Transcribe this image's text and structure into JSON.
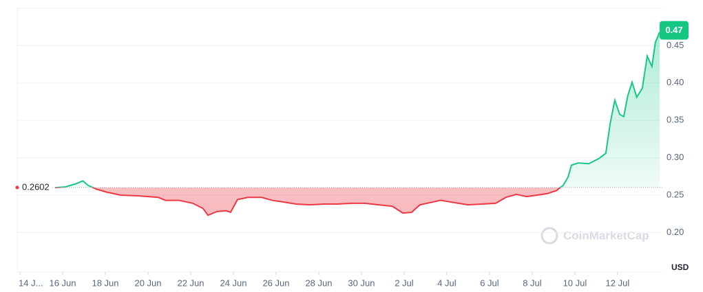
{
  "chart_data": {
    "type": "line",
    "x": [
      1.65,
      2.13,
      2.61,
      2.94,
      3.19,
      3.58,
      4.06,
      4.71,
      5.52,
      6.48,
      6.81,
      7.45,
      8.1,
      8.58,
      8.81,
      9.23,
      9.65,
      9.87,
      10.19,
      10.68,
      11.32,
      11.81,
      12.29,
      12.94,
      13.58,
      14.23,
      14.87,
      15.52,
      16.16,
      16.81,
      17.45,
      17.94,
      18.35,
      18.74,
      19.23,
      19.71,
      20.35,
      21.0,
      21.65,
      22.29,
      22.77,
      23.26,
      23.74,
      24.23,
      24.71,
      25.13,
      25.45,
      25.68,
      25.84,
      26.16,
      26.65,
      27.13,
      27.45,
      27.65,
      27.87,
      28.1,
      28.29,
      28.48,
      28.68,
      28.9,
      29.16,
      29.39,
      29.61,
      29.77,
      29.97
    ],
    "series": [
      {
        "values": [
          0.26,
          0.261,
          0.265,
          0.269,
          0.263,
          0.258,
          0.254,
          0.25,
          0.249,
          0.247,
          0.243,
          0.243,
          0.239,
          0.232,
          0.223,
          0.228,
          0.229,
          0.227,
          0.244,
          0.247,
          0.247,
          0.243,
          0.241,
          0.238,
          0.237,
          0.238,
          0.238,
          0.239,
          0.239,
          0.237,
          0.235,
          0.226,
          0.227,
          0.237,
          0.24,
          0.243,
          0.24,
          0.237,
          0.238,
          0.239,
          0.247,
          0.251,
          0.248,
          0.25,
          0.252,
          0.256,
          0.263,
          0.274,
          0.29,
          0.293,
          0.292,
          0.299,
          0.306,
          0.345,
          0.377,
          0.358,
          0.355,
          0.383,
          0.401,
          0.381,
          0.393,
          0.436,
          0.422,
          0.454,
          0.468
        ]
      }
    ],
    "up_color": "#16c784",
    "down_color": "#ea3943",
    "baseline": 0.2602,
    "current_price": 0.47,
    "xlim": [
      -0.13,
      30.1
    ],
    "xticks": [
      {
        "value": 0,
        "label": "14 J..."
      },
      {
        "value": 2,
        "label": "16 Jun"
      },
      {
        "value": 4,
        "label": "18 Jun"
      },
      {
        "value": 6,
        "label": "20 Jun"
      },
      {
        "value": 8,
        "label": "22 Jun"
      },
      {
        "value": 10,
        "label": "24 Jun"
      },
      {
        "value": 12,
        "label": "26 Jun"
      },
      {
        "value": 14,
        "label": "28 Jun"
      },
      {
        "value": 16,
        "label": "30 Jun"
      },
      {
        "value": 18,
        "label": "2 Jul"
      },
      {
        "value": 20,
        "label": "4 Jul"
      },
      {
        "value": 22,
        "label": "6 Jul"
      },
      {
        "value": 24,
        "label": "8 Jul"
      },
      {
        "value": 26,
        "label": "10 Jul"
      },
      {
        "value": 28,
        "label": "12 Jul"
      }
    ],
    "ylim": [
      0.147,
      0.5
    ],
    "yticks": [
      {
        "value": 0.2,
        "label": "0.20"
      },
      0.25,
      {
        "value": 0.3,
        "label": "0.30"
      },
      0.35,
      {
        "value": 0.4,
        "label": "0.40"
      },
      0.45
    ],
    "y_unit": "USD",
    "watermark": "CoinMarketCap",
    "grid": true
  }
}
